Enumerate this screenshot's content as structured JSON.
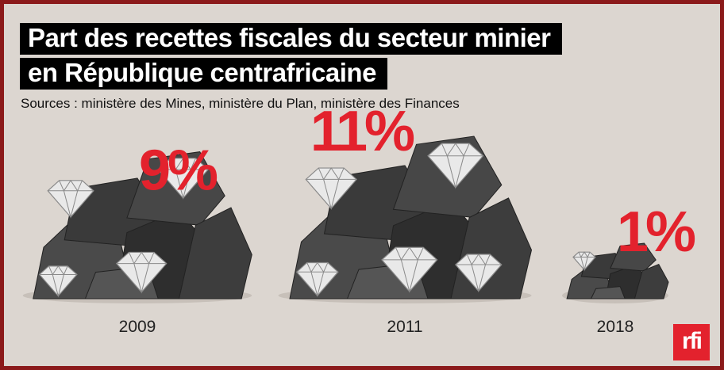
{
  "title": {
    "line1": "Part des recettes fiscales du secteur minier",
    "line2": "en République centrafricaine"
  },
  "subtitle": "Sources : ministère des Mines, ministère du Plan, ministère des Finances",
  "logo": "rfi",
  "colors": {
    "background": "#dcd6d0",
    "border": "#8b1a1a",
    "accent": "#e3222d",
    "rock": "#3c3c3c"
  },
  "chart_data": {
    "type": "bar",
    "title": "Part des recettes fiscales du secteur minier en République centrafricaine",
    "categories": [
      "2009",
      "2011",
      "2018"
    ],
    "values": [
      9,
      11,
      1
    ],
    "value_labels": [
      "9%",
      "11%",
      "1%"
    ],
    "unit": "%"
  }
}
